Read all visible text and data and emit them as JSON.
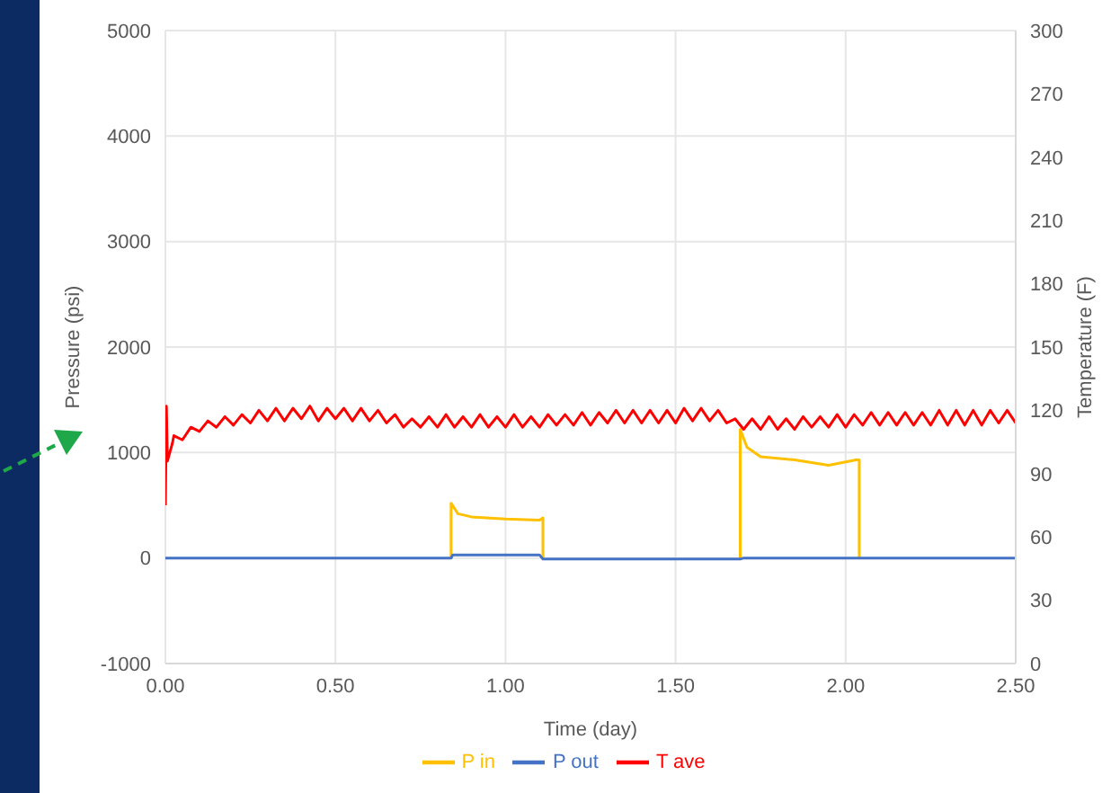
{
  "chart_data": {
    "type": "line",
    "xlabel": "Time (day)",
    "ylabel": "Pressure (psi)",
    "y2label": "Temperature (F)",
    "xlim": [
      0,
      2.5
    ],
    "xticks": [
      {
        "value": 0,
        "label": "0.00"
      },
      {
        "value": 0.5,
        "label": "0.50"
      },
      {
        "value": 1,
        "label": "1.00"
      },
      {
        "value": 1.5,
        "label": "1.50"
      },
      {
        "value": 2,
        "label": "2.00"
      },
      {
        "value": 2.5,
        "label": "2.50"
      }
    ],
    "ylim": [
      -1000,
      5000
    ],
    "yticks": [
      -1000,
      0,
      1000,
      2000,
      3000,
      4000,
      5000
    ],
    "y2lim": [
      0,
      300
    ],
    "y2ticks": [
      0,
      30,
      60,
      90,
      120,
      150,
      180,
      210,
      240,
      270,
      300
    ],
    "grid": true,
    "legend": "bottom",
    "marker": "none",
    "line_style": "solid",
    "series": [
      {
        "name": "P in",
        "color": "#ffc000",
        "x": [
          0.84,
          0.84,
          0.86,
          0.9,
          1.0,
          1.1,
          1.11,
          1.11,
          1.4,
          1.69,
          1.69,
          1.71,
          1.75,
          1.85,
          1.95,
          2.03,
          2.04,
          2.04
        ],
        "values": [
          0,
          520,
          420,
          390,
          370,
          360,
          380,
          0,
          null,
          0,
          1220,
          1050,
          960,
          930,
          880,
          930,
          930,
          0
        ]
      },
      {
        "name": "P out",
        "color": "#4472c4",
        "x": [
          0,
          0.84,
          0.845,
          1.1,
          1.11,
          1.69,
          1.7,
          2.5
        ],
        "values": [
          0,
          0,
          30,
          30,
          -10,
          -10,
          0,
          0
        ]
      },
      {
        "name": "T ave",
        "color": "#ff0000",
        "axis": "y2",
        "x": [
          0,
          0.003,
          0.006,
          0.02,
          0.025,
          0.05,
          0.075,
          0.1,
          0.125,
          0.15,
          0.175,
          0.2,
          0.225,
          0.25,
          0.275,
          0.3,
          0.325,
          0.35,
          0.375,
          0.4,
          0.425,
          0.45,
          0.475,
          0.5,
          0.525,
          0.55,
          0.575,
          0.6,
          0.625,
          0.65,
          0.675,
          0.7,
          0.725,
          0.75,
          0.775,
          0.8,
          0.825,
          0.85,
          0.875,
          0.9,
          0.925,
          0.95,
          0.975,
          1.0,
          1.025,
          1.05,
          1.075,
          1.1,
          1.125,
          1.15,
          1.175,
          1.2,
          1.225,
          1.25,
          1.275,
          1.3,
          1.325,
          1.35,
          1.375,
          1.4,
          1.425,
          1.45,
          1.475,
          1.5,
          1.525,
          1.55,
          1.575,
          1.6,
          1.625,
          1.65,
          1.675,
          1.7,
          1.725,
          1.75,
          1.775,
          1.8,
          1.825,
          1.85,
          1.875,
          1.9,
          1.925,
          1.95,
          1.975,
          2.0,
          2.025,
          2.05,
          2.075,
          2.1,
          2.125,
          2.15,
          2.175,
          2.2,
          2.225,
          2.25,
          2.275,
          2.3,
          2.325,
          2.35,
          2.375,
          2.4,
          2.425,
          2.45,
          2.475,
          2.5
        ],
        "values": [
          75,
          122,
          96,
          104,
          108,
          106,
          112,
          110,
          115,
          112,
          117,
          113,
          118,
          114,
          120,
          115,
          121,
          115,
          121,
          116,
          122,
          115,
          121,
          116,
          121,
          115,
          121,
          115,
          120,
          114,
          118,
          112,
          116,
          112,
          117,
          112,
          118,
          112,
          117,
          112,
          118,
          112,
          117,
          112,
          118,
          112,
          117,
          112,
          118,
          113,
          118,
          113,
          119,
          113,
          119,
          114,
          120,
          114,
          120,
          114,
          120,
          114,
          120,
          114,
          121,
          115,
          121,
          115,
          120,
          114,
          116,
          111,
          116,
          111,
          117,
          111,
          116,
          111,
          117,
          112,
          117,
          112,
          118,
          112,
          118,
          113,
          119,
          113,
          119,
          113,
          119,
          113,
          119,
          113,
          120,
          113,
          120,
          113,
          120,
          113,
          120,
          114,
          120,
          114
        ]
      }
    ]
  }
}
